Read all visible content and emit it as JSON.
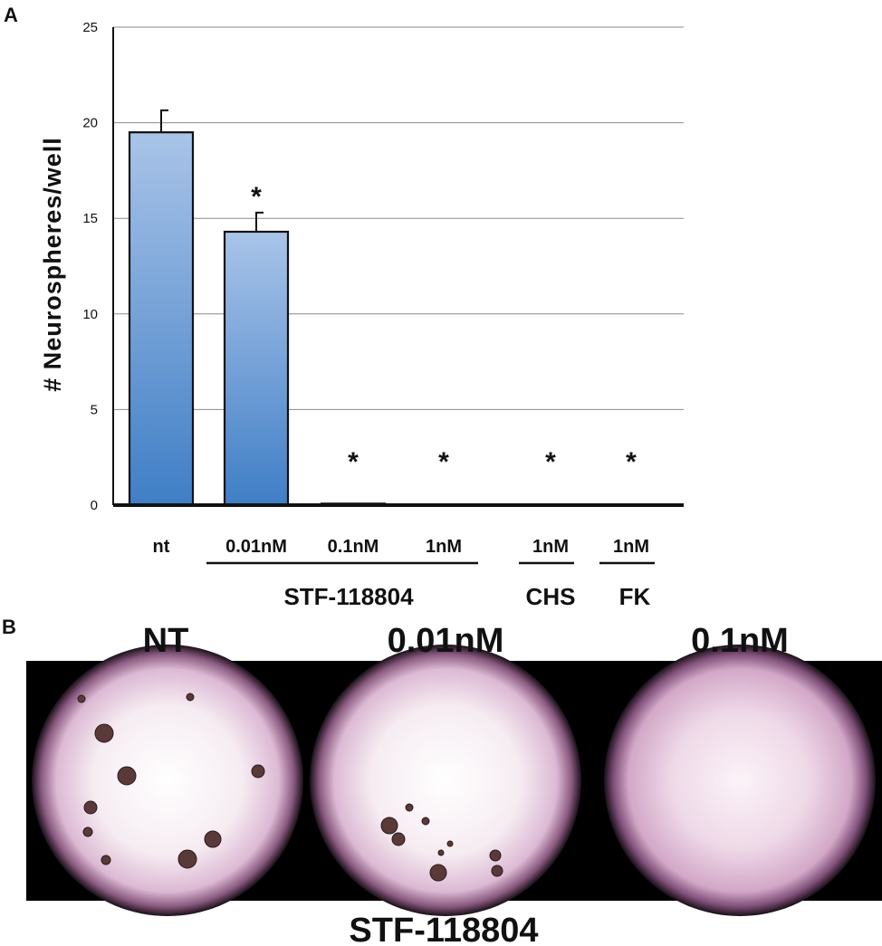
{
  "panels": {
    "a_label": "A",
    "b_label": "B"
  },
  "chart_data": {
    "type": "bar",
    "ylabel": "# Neurospheres/well",
    "ylim": [
      0,
      25
    ],
    "yticks": [
      0,
      5,
      10,
      15,
      20,
      25
    ],
    "grid": true,
    "categories": [
      "nt",
      "0.01nM",
      "0.1nM",
      "1nM",
      "1nM",
      "1nM"
    ],
    "values": [
      19.5,
      14.3,
      0.08,
      0,
      0,
      0
    ],
    "errors": [
      1.15,
      1.0,
      0,
      0,
      0,
      0
    ],
    "significance": [
      "",
      "*",
      "*",
      "*",
      "*",
      "*"
    ],
    "groups": [
      {
        "name": "STF-118804",
        "categories": [
          1,
          2,
          3
        ]
      },
      {
        "name": "CHS",
        "categories": [
          4
        ]
      },
      {
        "name": "FK",
        "categories": [
          5
        ]
      }
    ],
    "bar_color_top": "#a9c4e8",
    "bar_color_bottom": "#3f7ec6"
  },
  "images": {
    "labels": [
      "NT",
      "0.01nM",
      "0.1nM"
    ],
    "caption": "STF-118804",
    "sphere_color": "#5a3a38",
    "dish_color": "#f4e6ee"
  }
}
